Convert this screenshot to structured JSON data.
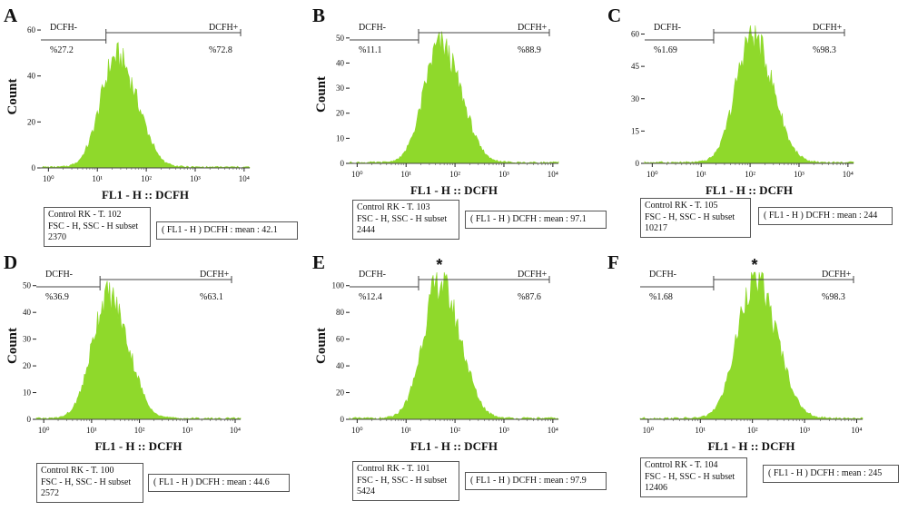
{
  "chart_data": [
    {
      "type": "area",
      "panel_label": "A",
      "ylabel": "Count",
      "xlabel": "FL1 - H :: DCFH",
      "yticks": [
        0,
        20,
        40,
        60
      ],
      "ylim": [
        0,
        62
      ],
      "xscale": "log",
      "xlim": [
        0.7,
        13000
      ],
      "xticks": [
        "10⁰",
        "10¹",
        "10²",
        "10³",
        "10⁴"
      ],
      "gate_left_label": "DCFH-",
      "gate_left_pct": "%27.2",
      "gate_right_label": "DCFH+",
      "gate_right_pct": "%72.8",
      "gate_x": 15,
      "peak_x": 25,
      "peak_count": 48,
      "info": [
        "Control RK - T. 102",
        "FSC - H, SSC - H subset",
        "2370"
      ],
      "mean": "( FL1 - H ) DCFH : mean : 42.1",
      "star": "",
      "color": "#8fd92b"
    },
    {
      "type": "area",
      "panel_label": "B",
      "ylabel": "Count",
      "xlabel": "FL1 - H :: DCFH",
      "yticks": [
        0,
        10,
        20,
        30,
        40,
        50
      ],
      "ylim": [
        0,
        55
      ],
      "xscale": "log",
      "xlim": [
        0.7,
        13000
      ],
      "xticks": [
        "10⁰",
        "10¹",
        "10²",
        "10³",
        "10⁴"
      ],
      "gate_left_label": "DCFH-",
      "gate_left_pct": "%11.1",
      "gate_right_label": "DCFH+",
      "gate_right_pct": "%88.9",
      "gate_x": 18,
      "peak_x": 50,
      "peak_count": 47,
      "info": [
        "Control RK - T. 103",
        "FSC - H, SSC - H subset",
        "2444"
      ],
      "mean": "( FL1 - H ) DCFH : mean : 97.1",
      "star": "",
      "color": "#8fd92b"
    },
    {
      "type": "area",
      "panel_label": "C",
      "ylabel": "",
      "xlabel": "FL1 - H :: DCFH",
      "yticks": [
        0,
        15,
        30,
        45,
        60
      ],
      "ytick_labels": [
        "0",
        "15",
        "30",
        "45",
        "60"
      ],
      "ylim": [
        0,
        64
      ],
      "xscale": "log",
      "xlim": [
        0.7,
        13000
      ],
      "xticks": [
        "10⁰",
        "10¹",
        "10²",
        "10³",
        "10⁴"
      ],
      "gate_left_label": "DCFH-",
      "gate_left_pct": "%1.69",
      "gate_right_label": "DCFH+",
      "gate_right_pct": "%98.3",
      "gate_x": 18,
      "peak_x": 110,
      "peak_count": 59,
      "info": [
        "Control RK - T. 105",
        "FSC - H, SSC - H subset",
        "10217"
      ],
      "mean": "( FL1 - H ) DCFH : mean : 244",
      "star": "",
      "color": "#8fd92b"
    },
    {
      "type": "area",
      "panel_label": "D",
      "ylabel": "Count",
      "xlabel": "FL1 - H :: DCFH",
      "yticks": [
        0,
        10,
        20,
        30,
        40,
        50
      ],
      "ylim": [
        0,
        55
      ],
      "xscale": "log",
      "xlim": [
        0.7,
        13000
      ],
      "xticks": [
        "10⁰",
        "10¹",
        "10²",
        "10³",
        "10⁴"
      ],
      "gate_left_label": "DCFH-",
      "gate_left_pct": "%36.9",
      "gate_right_label": "DCFH+",
      "gate_right_pct": "%63.1",
      "gate_x": 15,
      "peak_x": 22,
      "peak_count": 46,
      "info": [
        "Control RK - T. 100",
        "FSC - H, SSC - H subset",
        "2572"
      ],
      "mean": "( FL1 - H ) DCFH : mean : 44.6",
      "star": "",
      "color": "#8fd92b"
    },
    {
      "type": "area",
      "panel_label": "E",
      "ylabel": "Count",
      "xlabel": "FL1 - H :: DCFH",
      "yticks": [
        0,
        20,
        40,
        60,
        80,
        100
      ],
      "ylim": [
        0,
        110
      ],
      "xscale": "log",
      "xlim": [
        0.7,
        13000
      ],
      "xticks": [
        "10⁰",
        "10¹",
        "10²",
        "10³",
        "10⁴"
      ],
      "gate_left_label": "DCFH-",
      "gate_left_pct": "%12.4",
      "gate_right_label": "DCFH+",
      "gate_right_pct": "%87.6",
      "gate_x": 18,
      "peak_x": 48,
      "peak_count": 102,
      "info": [
        "Control RK - T. 101",
        "FSC - H, SSC - H subset",
        "5424"
      ],
      "mean": "( FL1 - H ) DCFH : mean : 97.9",
      "star": "*",
      "color": "#8fd92b"
    },
    {
      "type": "area",
      "panel_label": "F",
      "ylabel": "",
      "xlabel": "FL1 - H :: DCFH",
      "yticks": [],
      "ylim": [
        0,
        105
      ],
      "xscale": "log",
      "xlim": [
        0.7,
        13000
      ],
      "xticks": [
        "10⁰",
        "10¹",
        "10²",
        "10³",
        "10⁴"
      ],
      "gate_left_label": "DCFH-",
      "gate_left_pct": "%1.68",
      "gate_right_label": "DCFH+",
      "gate_right_pct": "%98.3",
      "gate_x": 18,
      "peak_x": 110,
      "peak_count": 100,
      "info": [
        "Control RK - T. 104",
        "FSC - H, SSC - H subset",
        "12406"
      ],
      "mean": "( FL1 - H ) DCFH : mean : 245",
      "star": "*",
      "color": "#8fd92b"
    }
  ]
}
